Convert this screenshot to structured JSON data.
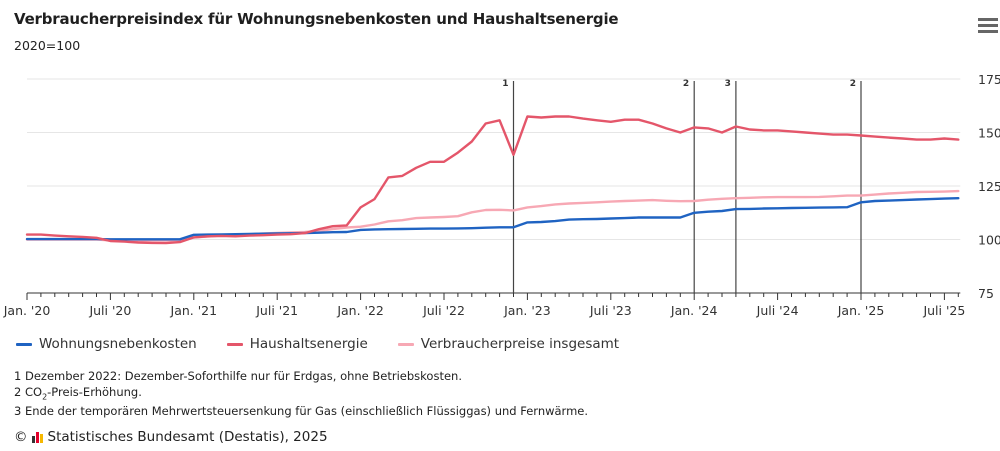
{
  "header": {
    "title": "Verbraucherpreisindex für Wohnungsnebenkosten und Haushaltsenergie",
    "subtitle": "2020=100",
    "menu_icon": "hamburger-menu-icon"
  },
  "chart_data": {
    "type": "line",
    "title": "Verbraucherpreisindex für Wohnungsnebenkosten und Haushaltsenergie",
    "subtitle": "2020=100",
    "xlabel": "",
    "ylabel": "",
    "ylim": [
      75,
      175
    ],
    "y_ticks": [
      "75",
      "100",
      "125",
      "150",
      "175"
    ],
    "y_axis_side": "right",
    "grid": true,
    "legend_position": "bottom",
    "x_start": "2020-01",
    "x_end": "2025-08",
    "x_tick_labels": [
      {
        "label": "Jan. '20",
        "month_index": 0
      },
      {
        "label": "Juli '20",
        "month_index": 6
      },
      {
        "label": "Jan. '21",
        "month_index": 12
      },
      {
        "label": "Juli '21",
        "month_index": 18
      },
      {
        "label": "Jan. '22",
        "month_index": 24
      },
      {
        "label": "Juli '22",
        "month_index": 30
      },
      {
        "label": "Jan. '23",
        "month_index": 36
      },
      {
        "label": "Juli '23",
        "month_index": 42
      },
      {
        "label": "Jan. '24",
        "month_index": 48
      },
      {
        "label": "Juli '24",
        "month_index": 54
      },
      {
        "label": "Jan. '25",
        "month_index": 60
      },
      {
        "label": "Juli '25",
        "month_index": 66
      }
    ],
    "series": [
      {
        "name": "Wohnungsnebenkosten",
        "color": "#1f63c2",
        "values": [
          100.2,
          100.2,
          100.2,
          100.2,
          100.2,
          100.2,
          100.1,
          100.1,
          100.1,
          100.1,
          100.1,
          100.1,
          102.2,
          102.3,
          102.4,
          102.5,
          102.6,
          102.7,
          102.8,
          102.9,
          103.0,
          103.2,
          103.4,
          103.5,
          104.5,
          104.7,
          104.8,
          104.9,
          105.0,
          105.1,
          105.1,
          105.2,
          105.3,
          105.5,
          105.7,
          105.7,
          108.0,
          108.2,
          108.6,
          109.3,
          109.5,
          109.6,
          109.8,
          110.0,
          110.3,
          110.3,
          110.3,
          110.3,
          112.5,
          113.0,
          113.3,
          114.2,
          114.3,
          114.5,
          114.6,
          114.7,
          114.8,
          114.9,
          115.0,
          115.1,
          117.4,
          118.0,
          118.2,
          118.4,
          118.7,
          118.9,
          119.1,
          119.3
        ]
      },
      {
        "name": "Haushaltsenergie",
        "color": "#e4566a",
        "values": [
          102.3,
          102.3,
          101.8,
          101.5,
          101.2,
          100.8,
          99.3,
          99.0,
          98.6,
          98.4,
          98.3,
          98.8,
          101.0,
          101.5,
          101.7,
          101.5,
          101.8,
          102.0,
          102.3,
          102.5,
          103.0,
          104.8,
          106.2,
          106.6,
          115.0,
          118.9,
          129.0,
          129.7,
          133.5,
          136.3,
          136.3,
          140.6,
          145.8,
          154.2,
          155.7,
          139.6,
          157.5,
          157.0,
          157.5,
          157.5,
          156.5,
          155.7,
          155.0,
          156.0,
          156.0,
          154.2,
          151.9,
          150.0,
          152.4,
          151.9,
          150.0,
          152.8,
          151.4,
          151.0,
          151.0,
          150.5,
          150.0,
          149.5,
          149.0,
          149.0,
          148.6,
          148.1,
          147.6,
          147.2,
          146.7,
          146.7,
          147.2,
          146.7
        ]
      },
      {
        "name": "Verbraucherpreise insgesamt",
        "color": "#f7a8b4",
        "values": [
          100.0,
          100.0,
          100.0,
          100.0,
          100.0,
          100.0,
          99.6,
          99.5,
          99.5,
          99.6,
          99.6,
          99.7,
          101.0,
          101.4,
          101.8,
          102.2,
          102.5,
          102.8,
          103.1,
          103.3,
          103.5,
          104.0,
          104.9,
          105.6,
          106.0,
          107.0,
          108.5,
          109.0,
          110.0,
          110.3,
          110.5,
          110.9,
          112.7,
          113.8,
          113.9,
          113.6,
          115.0,
          115.6,
          116.4,
          116.8,
          117.1,
          117.4,
          117.7,
          118.0,
          118.2,
          118.4,
          118.1,
          117.9,
          118.0,
          118.6,
          119.0,
          119.3,
          119.5,
          119.7,
          119.8,
          119.8,
          119.8,
          119.9,
          120.2,
          120.5,
          120.5,
          121.0,
          121.5,
          121.8,
          122.2,
          122.3,
          122.4,
          122.6
        ]
      }
    ],
    "annotations": [
      {
        "label": "1",
        "month_index": 35
      },
      {
        "label": "2",
        "month_index": 48
      },
      {
        "label": "3",
        "month_index": 51
      },
      {
        "label": "2",
        "month_index": 60
      }
    ]
  },
  "legend": [
    {
      "label": "Wohnungsnebenkosten",
      "color": "#1f63c2"
    },
    {
      "label": "Haushaltsenergie",
      "color": "#e4566a"
    },
    {
      "label": "Verbraucherpreise insgesamt",
      "color": "#f7a8b4"
    }
  ],
  "footnotes": {
    "note1": "1 Dezember 2022: Dezember-Soforthilfe nur für Erdgas, ohne Betriebskosten.",
    "note2_prefix": "2 CO",
    "note2_sub": "2",
    "note2_suffix": "-Preis-Erhöhung.",
    "note3": "3 Ende der temporären Mehrwertsteuersenkung für Gas (einschließlich Flüssiggas) und Fernwärme."
  },
  "source": {
    "copyright_symbol": "©",
    "text": "Statistisches Bundesamt (Destatis), 2025",
    "logo_colors": [
      "#333333",
      "#e4002b",
      "#f6b800"
    ]
  }
}
